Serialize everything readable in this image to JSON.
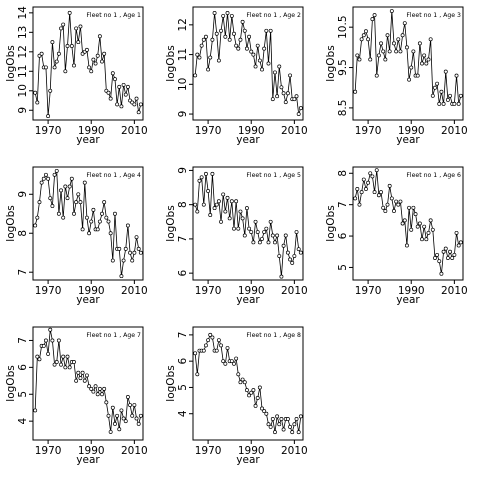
{
  "chart_data": [
    {
      "type": "line",
      "title": "Fleet no 1 , Age 1",
      "xlabel": "year",
      "ylabel": "logObs",
      "xlim": [
        1963,
        2014
      ],
      "ylim": [
        8.5,
        14.3
      ],
      "xticks": [
        1970,
        1990,
        2010
      ],
      "yticks": [
        9,
        10,
        11,
        12,
        13,
        14
      ],
      "x": [
        1964,
        1965,
        1966,
        1967,
        1968,
        1969,
        1970,
        1971,
        1972,
        1973,
        1974,
        1975,
        1976,
        1977,
        1978,
        1979,
        1980,
        1981,
        1982,
        1983,
        1984,
        1985,
        1986,
        1987,
        1988,
        1989,
        1990,
        1991,
        1992,
        1993,
        1994,
        1995,
        1996,
        1997,
        1998,
        1999,
        2000,
        2001,
        2002,
        2003,
        2004,
        2005,
        2006,
        2007,
        2008,
        2009,
        2010,
        2011,
        2012,
        2013
      ],
      "y": [
        9.9,
        9.4,
        11.8,
        11.9,
        11.2,
        11.2,
        8.7,
        10.0,
        12.5,
        11.2,
        11.5,
        11.9,
        13.2,
        13.4,
        11.0,
        12.3,
        14.0,
        12.3,
        11.3,
        13.2,
        12.5,
        13.3,
        11.9,
        12.0,
        12.1,
        11.2,
        11.0,
        11.6,
        11.4,
        11.8,
        12.8,
        11.5,
        11.9,
        10.0,
        9.9,
        9.6,
        10.9,
        10.6,
        9.3,
        10.2,
        9.2,
        10.3,
        9.8,
        10.2,
        9.5,
        9.4,
        9.3,
        9.6,
        8.9,
        9.3
      ]
    },
    {
      "type": "line",
      "title": "Fleet no 1 , Age 2",
      "xlabel": "year",
      "ylabel": "logObs",
      "xlim": [
        1963,
        2014
      ],
      "ylim": [
        8.8,
        12.6
      ],
      "xticks": [
        1970,
        1990,
        2010
      ],
      "yticks": [
        9.0,
        10.0,
        11.0,
        12.0
      ],
      "x": [
        1964,
        1965,
        1966,
        1967,
        1968,
        1969,
        1970,
        1971,
        1972,
        1973,
        1974,
        1975,
        1976,
        1977,
        1978,
        1979,
        1980,
        1981,
        1982,
        1983,
        1984,
        1985,
        1986,
        1987,
        1988,
        1989,
        1990,
        1991,
        1992,
        1993,
        1994,
        1995,
        1996,
        1997,
        1998,
        1999,
        2000,
        2001,
        2002,
        2003,
        2004,
        2005,
        2006,
        2007,
        2008,
        2009,
        2010,
        2011,
        2012,
        2013
      ],
      "y": [
        10.3,
        11.0,
        10.9,
        11.3,
        11.5,
        11.6,
        10.5,
        10.9,
        11.5,
        12.4,
        11.7,
        10.8,
        11.8,
        12.3,
        11.6,
        12.4,
        11.5,
        12.3,
        11.7,
        11.3,
        11.2,
        11.5,
        12.1,
        11.8,
        11.2,
        11.6,
        11.1,
        11.0,
        10.6,
        11.3,
        10.8,
        10.5,
        11.2,
        11.8,
        10.7,
        11.8,
        9.5,
        10.4,
        9.6,
        10.6,
        9.9,
        9.7,
        9.4,
        9.7,
        10.3,
        9.5,
        9.5,
        9.6,
        9.0,
        9.2
      ]
    },
    {
      "type": "line",
      "title": "Fleet no 1 , Age 3",
      "xlabel": "year",
      "ylabel": "logObs",
      "xlim": [
        1963,
        2014
      ],
      "ylim": [
        8.2,
        11.0
      ],
      "xticks": [
        1970,
        1990,
        2010
      ],
      "yticks": [
        8.5,
        9.5,
        10.5
      ],
      "x": [
        1964,
        1965,
        1966,
        1967,
        1968,
        1969,
        1970,
        1971,
        1972,
        1973,
        1974,
        1975,
        1976,
        1977,
        1978,
        1979,
        1980,
        1981,
        1982,
        1983,
        1984,
        1985,
        1986,
        1987,
        1988,
        1989,
        1990,
        1991,
        1992,
        1993,
        1994,
        1995,
        1996,
        1997,
        1998,
        1999,
        2000,
        2001,
        2002,
        2003,
        2004,
        2005,
        2006,
        2007,
        2008,
        2009,
        2010,
        2011,
        2012,
        2013
      ],
      "y": [
        8.9,
        9.8,
        9.7,
        10.2,
        10.3,
        10.4,
        10.2,
        9.7,
        10.7,
        10.8,
        9.3,
        9.8,
        10.1,
        9.9,
        9.7,
        10.3,
        9.9,
        10.9,
        10.1,
        9.9,
        10.2,
        9.9,
        10.3,
        10.6,
        10.0,
        9.2,
        9.5,
        9.9,
        9.3,
        9.3,
        10.1,
        9.6,
        9.8,
        9.6,
        9.7,
        10.2,
        8.8,
        9.0,
        9.1,
        8.6,
        8.9,
        8.6,
        9.4,
        8.7,
        8.8,
        8.6,
        8.6,
        9.3,
        8.6,
        8.8
      ]
    },
    {
      "type": "line",
      "title": "Fleet no 1 , Age 4",
      "xlabel": "year",
      "ylabel": "logObs",
      "xlim": [
        1963,
        2014
      ],
      "ylim": [
        6.8,
        9.7
      ],
      "xticks": [
        1970,
        1990,
        2010
      ],
      "yticks": [
        7.0,
        8.0,
        9.0
      ],
      "x": [
        1964,
        1965,
        1966,
        1967,
        1968,
        1969,
        1970,
        1971,
        1972,
        1973,
        1974,
        1975,
        1976,
        1977,
        1978,
        1979,
        1980,
        1981,
        1982,
        1983,
        1984,
        1985,
        1986,
        1987,
        1988,
        1989,
        1990,
        1991,
        1992,
        1993,
        1994,
        1995,
        1996,
        1997,
        1998,
        1999,
        2000,
        2001,
        2002,
        2003,
        2004,
        2005,
        2006,
        2007,
        2008,
        2009,
        2010,
        2011,
        2012,
        2013
      ],
      "y": [
        8.2,
        8.4,
        8.8,
        9.3,
        9.4,
        9.5,
        9.4,
        8.9,
        8.7,
        9.5,
        9.6,
        8.5,
        9.1,
        8.4,
        9.2,
        8.9,
        9.2,
        9.4,
        8.5,
        8.8,
        9.0,
        8.8,
        8.1,
        9.3,
        8.4,
        8.0,
        8.3,
        8.6,
        8.1,
        8.1,
        8.3,
        8.5,
        8.8,
        8.4,
        8.3,
        8.0,
        7.3,
        8.5,
        7.6,
        7.6,
        6.9,
        7.3,
        7.6,
        8.2,
        7.5,
        7.3,
        7.5,
        7.9,
        7.6,
        7.5
      ]
    },
    {
      "type": "line",
      "title": "Fleet no 1 , Age 5",
      "xlabel": "year",
      "ylabel": "logObs",
      "xlim": [
        1963,
        2014
      ],
      "ylim": [
        5.8,
        9.1
      ],
      "xticks": [
        1970,
        1990,
        2010
      ],
      "yticks": [
        6.0,
        7.0,
        8.0,
        9.0
      ],
      "x": [
        1964,
        1965,
        1966,
        1967,
        1968,
        1969,
        1970,
        1971,
        1972,
        1973,
        1974,
        1975,
        1976,
        1977,
        1978,
        1979,
        1980,
        1981,
        1982,
        1983,
        1984,
        1985,
        1986,
        1987,
        1988,
        1989,
        1990,
        1991,
        1992,
        1993,
        1994,
        1995,
        1996,
        1997,
        1998,
        1999,
        2000,
        2001,
        2002,
        2003,
        2004,
        2005,
        2006,
        2007,
        2008,
        2009,
        2010,
        2011,
        2012,
        2013
      ],
      "y": [
        8.0,
        7.8,
        8.7,
        8.8,
        8.0,
        8.9,
        8.4,
        7.7,
        8.9,
        7.9,
        8.0,
        8.1,
        7.5,
        8.3,
        7.8,
        8.2,
        7.6,
        8.1,
        7.3,
        8.1,
        7.3,
        7.8,
        7.6,
        7.1,
        7.9,
        7.3,
        7.2,
        6.9,
        7.5,
        7.2,
        6.9,
        7.0,
        7.2,
        7.3,
        6.9,
        7.5,
        7.1,
        6.9,
        7.1,
        6.5,
        5.9,
        6.8,
        7.1,
        6.6,
        6.4,
        6.3,
        6.5,
        7.2,
        6.7,
        6.6
      ]
    },
    {
      "type": "line",
      "title": "Fleet no 1 , Age 6",
      "xlabel": "year",
      "ylabel": "logObs",
      "xlim": [
        1963,
        2014
      ],
      "ylim": [
        4.6,
        8.2
      ],
      "xticks": [
        1970,
        1990,
        2010
      ],
      "yticks": [
        5.0,
        6.0,
        7.0,
        8.0
      ],
      "x": [
        1964,
        1965,
        1966,
        1967,
        1968,
        1969,
        1970,
        1971,
        1972,
        1973,
        1974,
        1975,
        1976,
        1977,
        1978,
        1979,
        1980,
        1981,
        1982,
        1983,
        1984,
        1985,
        1986,
        1987,
        1988,
        1989,
        1990,
        1991,
        1992,
        1993,
        1994,
        1995,
        1996,
        1997,
        1998,
        1999,
        2000,
        2001,
        2002,
        2003,
        2004,
        2005,
        2006,
        2007,
        2008,
        2009,
        2010,
        2011,
        2012,
        2013
      ],
      "y": [
        7.2,
        7.5,
        7.0,
        7.4,
        7.8,
        7.5,
        7.7,
        8.0,
        7.9,
        7.4,
        8.1,
        7.3,
        7.4,
        6.9,
        6.8,
        7.0,
        7.6,
        7.2,
        6.8,
        7.1,
        7.0,
        7.1,
        6.4,
        6.5,
        5.7,
        6.9,
        6.2,
        6.9,
        6.7,
        6.3,
        6.4,
        5.9,
        6.3,
        5.9,
        6.1,
        6.5,
        6.2,
        5.3,
        5.4,
        5.2,
        4.8,
        5.5,
        5.6,
        5.3,
        5.5,
        5.3,
        5.4,
        6.1,
        5.7,
        5.8
      ]
    },
    {
      "type": "line",
      "title": "Fleet no 1 , Age 7",
      "xlabel": "year",
      "ylabel": "logObs",
      "xlim": [
        1963,
        2014
      ],
      "ylim": [
        3.3,
        7.5
      ],
      "xticks": [
        1970,
        1990,
        2010
      ],
      "yticks": [
        4,
        5,
        6,
        7
      ],
      "x": [
        1964,
        1965,
        1966,
        1967,
        1968,
        1969,
        1970,
        1971,
        1972,
        1973,
        1974,
        1975,
        1976,
        1977,
        1978,
        1979,
        1980,
        1981,
        1982,
        1983,
        1984,
        1985,
        1986,
        1987,
        1988,
        1989,
        1990,
        1991,
        1992,
        1993,
        1994,
        1995,
        1996,
        1997,
        1998,
        1999,
        2000,
        2001,
        2002,
        2003,
        2004,
        2005,
        2006,
        2007,
        2008,
        2009,
        2010,
        2011,
        2012,
        2013
      ],
      "y": [
        4.4,
        6.4,
        6.3,
        6.8,
        6.8,
        7.0,
        6.5,
        7.4,
        7.0,
        6.1,
        6.2,
        7.0,
        6.1,
        6.4,
        6.0,
        6.4,
        6.0,
        6.2,
        6.2,
        5.5,
        5.8,
        5.6,
        5.8,
        5.5,
        5.7,
        5.3,
        5.2,
        5.1,
        5.3,
        5.0,
        5.2,
        5.0,
        5.2,
        4.7,
        4.2,
        3.6,
        4.5,
        3.9,
        4.2,
        3.7,
        4.4,
        4.1,
        4.0,
        4.9,
        4.6,
        4.2,
        4.6,
        4.1,
        3.9,
        4.2
      ]
    },
    {
      "type": "line",
      "title": "Fleet no 1 , Age 8",
      "xlabel": "year",
      "ylabel": "logObs",
      "xlim": [
        1963,
        2014
      ],
      "ylim": [
        3.0,
        7.3
      ],
      "xticks": [
        1970,
        1990,
        2010
      ],
      "yticks": [
        4,
        5,
        6,
        7
      ],
      "x": [
        1964,
        1965,
        1966,
        1967,
        1968,
        1969,
        1970,
        1971,
        1972,
        1973,
        1974,
        1975,
        1976,
        1977,
        1978,
        1979,
        1980,
        1981,
        1982,
        1983,
        1984,
        1985,
        1986,
        1987,
        1988,
        1989,
        1990,
        1991,
        1992,
        1993,
        1994,
        1995,
        1996,
        1997,
        1998,
        1999,
        2000,
        2001,
        2002,
        2003,
        2004,
        2005,
        2006,
        2007,
        2008,
        2009,
        2010,
        2011,
        2012,
        2013
      ],
      "y": [
        6.3,
        5.5,
        6.4,
        6.4,
        6.4,
        6.6,
        6.8,
        7.0,
        6.9,
        6.4,
        6.4,
        6.8,
        6.6,
        6.0,
        5.9,
        6.5,
        6.0,
        6.0,
        5.9,
        6.1,
        5.5,
        5.2,
        5.3,
        5.2,
        4.9,
        4.7,
        4.8,
        4.9,
        4.3,
        4.6,
        5.0,
        4.2,
        4.1,
        4.0,
        3.6,
        3.5,
        3.8,
        3.3,
        3.9,
        3.6,
        3.8,
        3.4,
        3.8,
        3.8,
        3.5,
        3.3,
        3.6,
        3.8,
        3.3,
        3.9
      ]
    }
  ]
}
